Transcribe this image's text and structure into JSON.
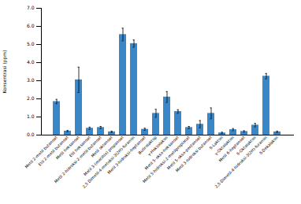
{
  "chart_data": {
    "type": "bar",
    "categories": [
      "Metil 2-metil butanoat",
      "Etil 2-metil butanoat",
      "Metil heksanoat",
      "Etil heksanoat",
      "Metil 2-hidroksi-2-metil-butanoat",
      "Metil oktanoat",
      "Metil 3-(metiltio) propanoat",
      "2,5 Dimetil-4-metoksi-3(2H)-furanon",
      "Metil 3-hidroksi-heptanoat",
      "Butirolaktop",
      "γ-Heksolakon",
      "Metil 5-okso-heksanoat",
      "Metil 5-hidroksi-2-metilpropionat",
      "Metil 5-okso-pentanoat",
      "Metil 3-hidroksi butanoat",
      "δ-Lakton",
      "γ-Oktalakton",
      "Metil 6-heptanoat",
      "δ-Oktalakton",
      "2,5-Dimetil-4-hidroksi-3(2H)-furanon",
      "δ-Dekalakon"
    ],
    "values": [
      1.85,
      0.22,
      3.05,
      0.38,
      0.42,
      0.18,
      5.55,
      5.05,
      0.32,
      1.2,
      2.1,
      1.3,
      0.42,
      0.6,
      1.2,
      0.12,
      0.3,
      0.2,
      0.55,
      3.25,
      0.18
    ],
    "errors": [
      0.12,
      0.04,
      0.7,
      0.06,
      0.06,
      0.04,
      0.35,
      0.2,
      0.06,
      0.22,
      0.3,
      0.1,
      0.06,
      0.2,
      0.3,
      0.04,
      0.06,
      0.04,
      0.1,
      0.15,
      0.04
    ],
    "color": "#3a87c8",
    "ylabel": "Konsentrasi (ppm)",
    "ylim": [
      0,
      7
    ],
    "yticks": [
      0,
      1,
      2,
      3,
      4,
      5,
      6,
      7
    ]
  }
}
